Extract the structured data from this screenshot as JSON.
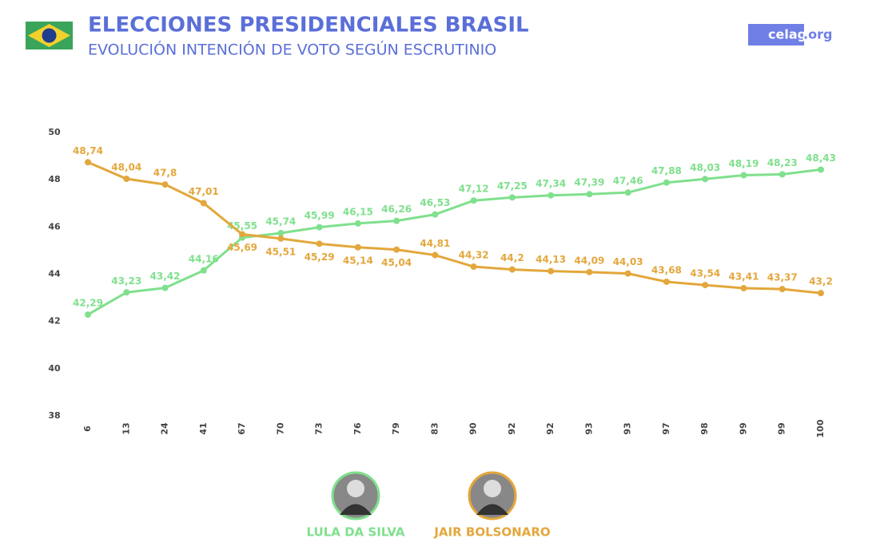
{
  "header": {
    "title": "ELECCIONES PRESIDENCIALES BRASIL",
    "subtitle": "EVOLUCIÓN INTENCIÓN DE VOTO SEGÚN ESCRUTINIO"
  },
  "logo": {
    "name": "celag",
    "suffix": ".org"
  },
  "chart_data": {
    "type": "line",
    "categories": [
      "6",
      "13",
      "24",
      "41",
      "67",
      "70",
      "73",
      "76",
      "79",
      "83",
      "90",
      "92",
      "92",
      "93",
      "93",
      "97",
      "98",
      "99",
      "99",
      "100"
    ],
    "series": [
      {
        "name": "LULA DA SILVA",
        "color": "#7fe08d",
        "values": [
          42.29,
          43.23,
          43.42,
          44.16,
          45.55,
          45.74,
          45.99,
          46.15,
          46.26,
          46.53,
          47.12,
          47.25,
          47.34,
          47.39,
          47.46,
          47.88,
          48.03,
          48.19,
          48.23,
          48.43
        ],
        "value_labels": [
          "42,29",
          "43,23",
          "43,42",
          "44,16",
          "45,55",
          "45,74",
          "45,99",
          "46,15",
          "46,26",
          "46,53",
          "47,12",
          "47,25",
          "47,34",
          "47,39",
          "47,46",
          "47,88",
          "48,03",
          "48,19",
          "48,23",
          "48,43"
        ]
      },
      {
        "name": "JAIR BOLSONARO",
        "color": "#e3a73c",
        "values": [
          48.74,
          48.04,
          47.8,
          47.01,
          45.69,
          45.51,
          45.29,
          45.14,
          45.04,
          44.81,
          44.32,
          44.2,
          44.13,
          44.09,
          44.03,
          43.68,
          43.54,
          43.41,
          43.37,
          43.2
        ],
        "value_labels": [
          "48,74",
          "48,04",
          "47,8",
          "47,01",
          "45,69",
          "45,51",
          "45,29",
          "45,14",
          "45,04",
          "44,81",
          "44,32",
          "44,2",
          "44,13",
          "44,09",
          "44,03",
          "43,68",
          "43,54",
          "43,41",
          "43,37",
          "43,2"
        ]
      }
    ],
    "ylim": [
      38,
      50
    ],
    "yticks": [
      38,
      40,
      42,
      44,
      46,
      48,
      50
    ],
    "grid": false,
    "legend": "bottom"
  }
}
